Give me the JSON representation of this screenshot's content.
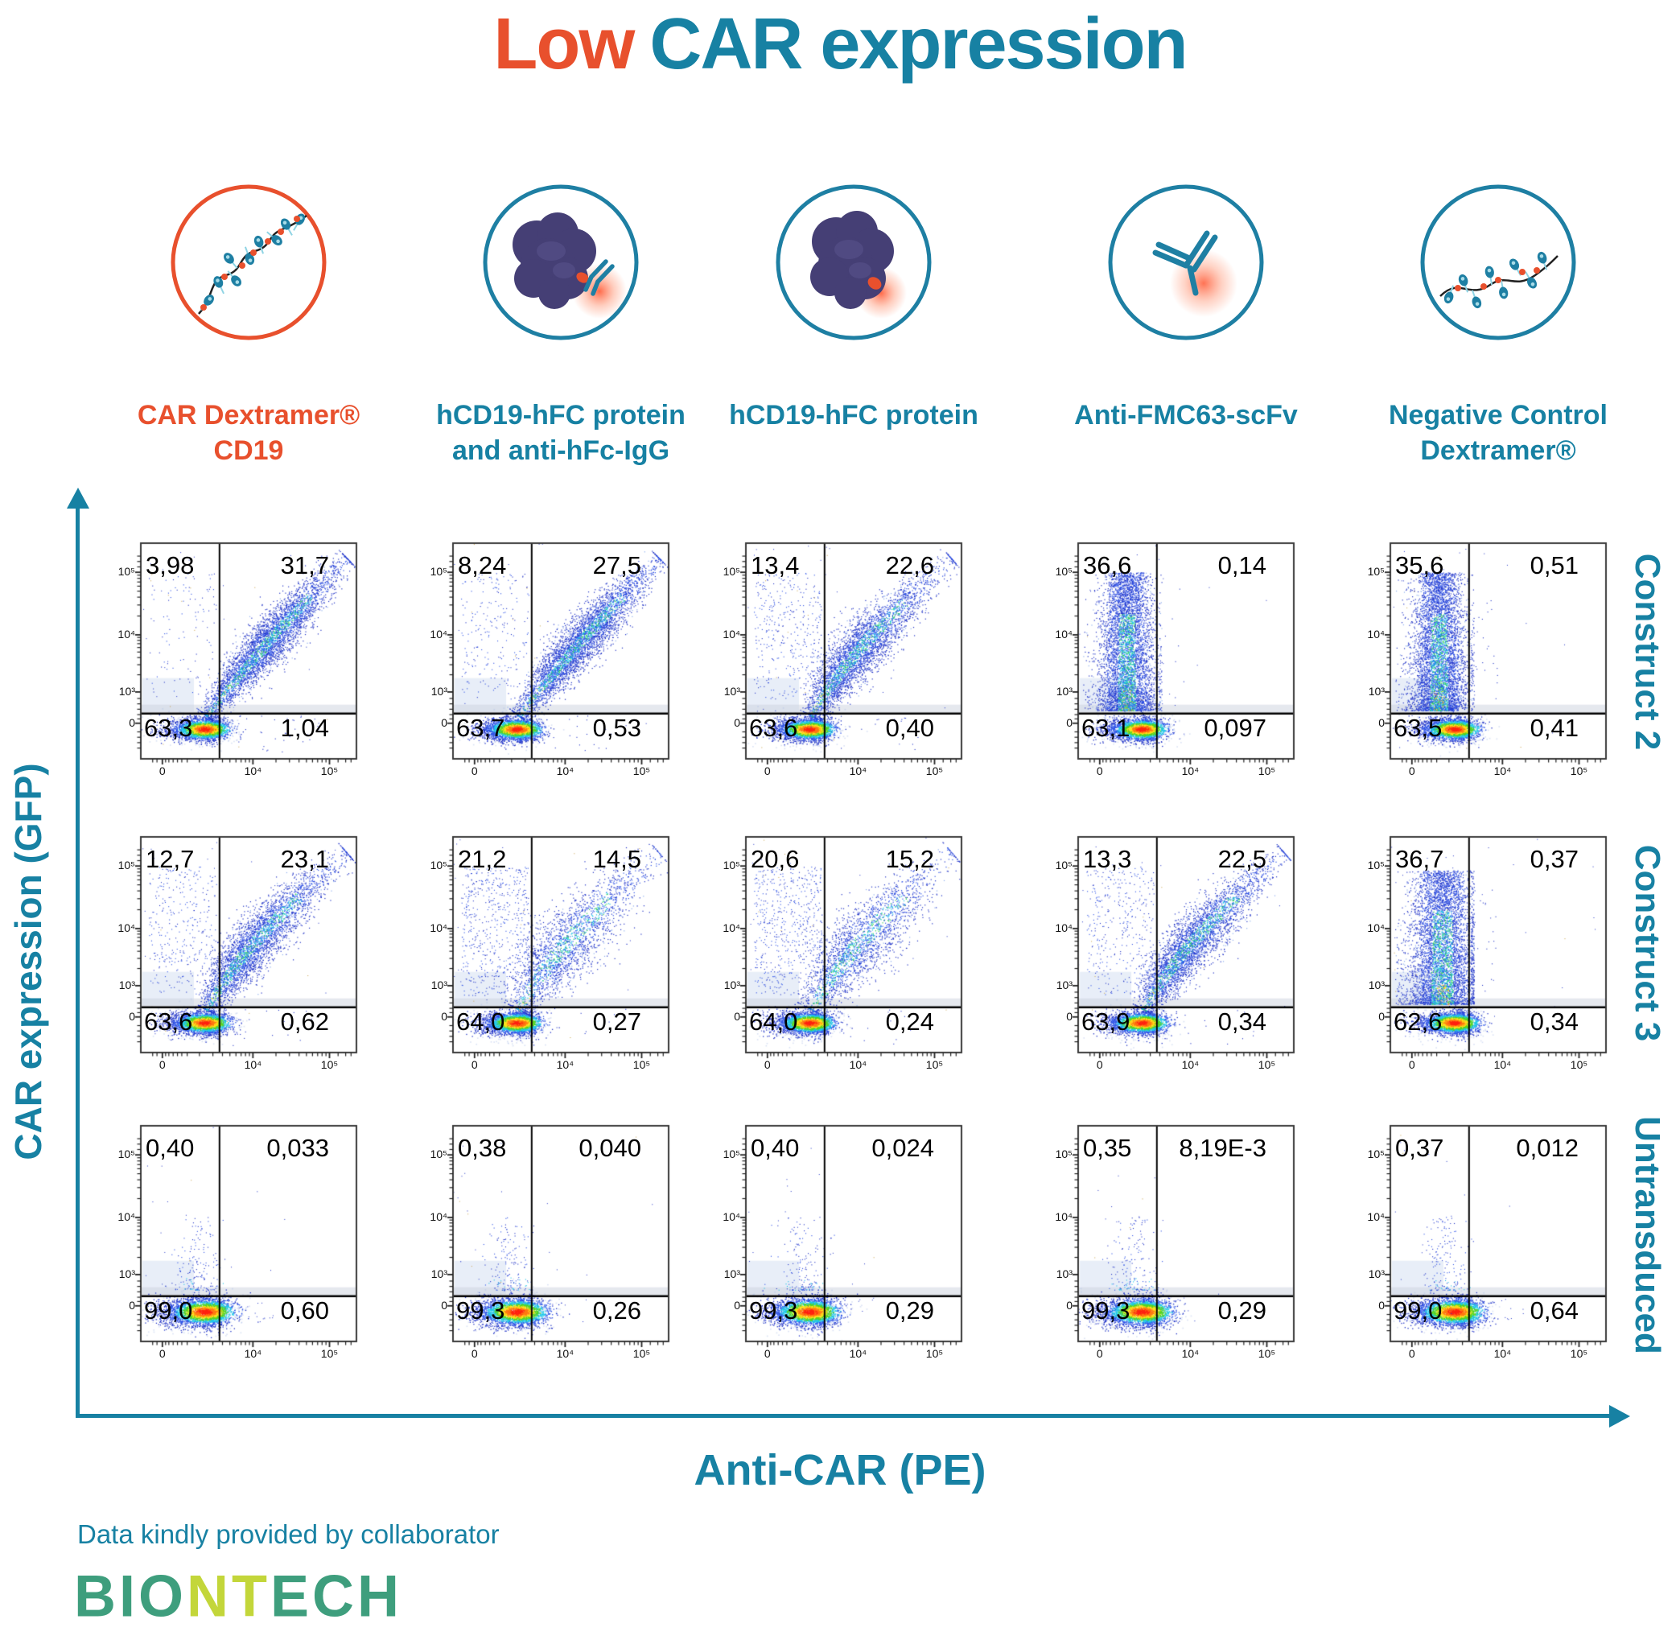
{
  "title": {
    "part1": "Low",
    "part2": "CAR expression"
  },
  "colors": {
    "accent_orange": "#E8502D",
    "accent_teal": "#1781A3",
    "logo_green": "#3E9E7D",
    "logo_lime": "#C3D63A",
    "protein_purple": "#453F75"
  },
  "chart_data": {
    "type": "scatter",
    "subtype": "flow-cytometry-pseudocolor-quadrant-grid",
    "grid": "3 rows x 5 columns",
    "x_axis": {
      "label": "Anti-CAR (PE)",
      "scale": "biexponential-log",
      "ticks": [
        "0",
        "10⁴",
        "10⁵"
      ]
    },
    "y_axis": {
      "label": "CAR expression (GFP)",
      "scale": "biexponential-log",
      "ticks": [
        "10⁵",
        "10⁴",
        "10³",
        "0"
      ]
    },
    "columns": [
      {
        "icon": "car-dextramer-cd19-icon",
        "line1": "CAR Dextramer®",
        "line2": "CD19",
        "color": "#E8502D"
      },
      {
        "icon": "hcd19-hfc-anti-hfc-igg-icon",
        "line1": "hCD19-hFC protein",
        "line2": "and anti-hFc-IgG",
        "color": "#1781A3"
      },
      {
        "icon": "hcd19-hfc-protein-icon",
        "line1": "hCD19-hFC protein",
        "line2": "",
        "color": "#1781A3"
      },
      {
        "icon": "anti-fmc63-scfv-icon",
        "line1": "Anti-FMC63-scFv",
        "line2": "",
        "color": "#1781A3"
      },
      {
        "icon": "negative-control-dextramer-icon",
        "line1": "Negative Control",
        "line2": "Dextramer®",
        "color": "#1781A3"
      }
    ],
    "rows": [
      "Construct 2",
      "Construct 3",
      "Untransduced"
    ],
    "plots": [
      {
        "row": "Construct 2",
        "column": "CAR Dextramer® CD19",
        "pattern": "diagonal",
        "quadrants": {
          "upper_left": "3,98",
          "upper_right": "31,7",
          "lower_left": "63,3",
          "lower_right": "1,04"
        }
      },
      {
        "row": "Construct 2",
        "column": "hCD19-hFC protein and anti-hFc-IgG",
        "pattern": "diagonal",
        "quadrants": {
          "upper_left": "8,24",
          "upper_right": "27,5",
          "lower_left": "63,7",
          "lower_right": "0,53"
        }
      },
      {
        "row": "Construct 2",
        "column": "hCD19-hFC protein",
        "pattern": "diagonal-curve",
        "quadrants": {
          "upper_left": "13,4",
          "upper_right": "22,6",
          "lower_left": "63,6",
          "lower_right": "0,40"
        }
      },
      {
        "row": "Construct 2",
        "column": "Anti-FMC63-scFv",
        "pattern": "vertical",
        "quadrants": {
          "upper_left": "36,6",
          "upper_right": "0,14",
          "lower_left": "63,1",
          "lower_right": "0,097"
        }
      },
      {
        "row": "Construct 2",
        "column": "Negative Control Dextramer®",
        "pattern": "vertical",
        "quadrants": {
          "upper_left": "35,6",
          "upper_right": "0,51",
          "lower_left": "63,5",
          "lower_right": "0,41"
        }
      },
      {
        "row": "Construct 3",
        "column": "CAR Dextramer® CD19",
        "pattern": "diagonal-curve",
        "quadrants": {
          "upper_left": "12,7",
          "upper_right": "23,1",
          "lower_left": "63,6",
          "lower_right": "0,62"
        }
      },
      {
        "row": "Construct 3",
        "column": "hCD19-hFC protein and anti-hFc-IgG",
        "pattern": "diagonal-sparse",
        "quadrants": {
          "upper_left": "21,2",
          "upper_right": "14,5",
          "lower_left": "64,0",
          "lower_right": "0,27"
        }
      },
      {
        "row": "Construct 3",
        "column": "hCD19-hFC protein",
        "pattern": "diagonal-sparse",
        "quadrants": {
          "upper_left": "20,6",
          "upper_right": "15,2",
          "lower_left": "64,0",
          "lower_right": "0,24"
        }
      },
      {
        "row": "Construct 3",
        "column": "Anti-FMC63-scFv",
        "pattern": "diagonal-curve",
        "quadrants": {
          "upper_left": "13,3",
          "upper_right": "22,5",
          "lower_left": "63,9",
          "lower_right": "0,34"
        }
      },
      {
        "row": "Construct 3",
        "column": "Negative Control Dextramer®",
        "pattern": "vertical-wide",
        "quadrants": {
          "upper_left": "36,7",
          "upper_right": "0,37",
          "lower_left": "62,6",
          "lower_right": "0,34"
        }
      },
      {
        "row": "Untransduced",
        "column": "CAR Dextramer® CD19",
        "pattern": "blob",
        "quadrants": {
          "upper_left": "0,40",
          "upper_right": "0,033",
          "lower_left": "99,0",
          "lower_right": "0,60"
        }
      },
      {
        "row": "Untransduced",
        "column": "hCD19-hFC protein and anti-hFc-IgG",
        "pattern": "blob",
        "quadrants": {
          "upper_left": "0,38",
          "upper_right": "0,040",
          "lower_left": "99,3",
          "lower_right": "0,26"
        }
      },
      {
        "row": "Untransduced",
        "column": "hCD19-hFC protein",
        "pattern": "blob",
        "quadrants": {
          "upper_left": "0,40",
          "upper_right": "0,024",
          "lower_left": "99,3",
          "lower_right": "0,29"
        }
      },
      {
        "row": "Untransduced",
        "column": "Anti-FMC63-scFv",
        "pattern": "blob",
        "quadrants": {
          "upper_left": "0,35",
          "upper_right": "8,19E-3",
          "lower_left": "99,3",
          "lower_right": "0,29"
        }
      },
      {
        "row": "Untransduced",
        "column": "Negative Control Dextramer®",
        "pattern": "blob",
        "quadrants": {
          "upper_left": "0,37",
          "upper_right": "0,012",
          "lower_left": "99,0",
          "lower_right": "0,64"
        }
      }
    ]
  },
  "footer": {
    "credit": "Data kindly provided by collaborator",
    "logo_part1": "BIO",
    "logo_part2": "NT",
    "logo_part3": "ECH"
  }
}
